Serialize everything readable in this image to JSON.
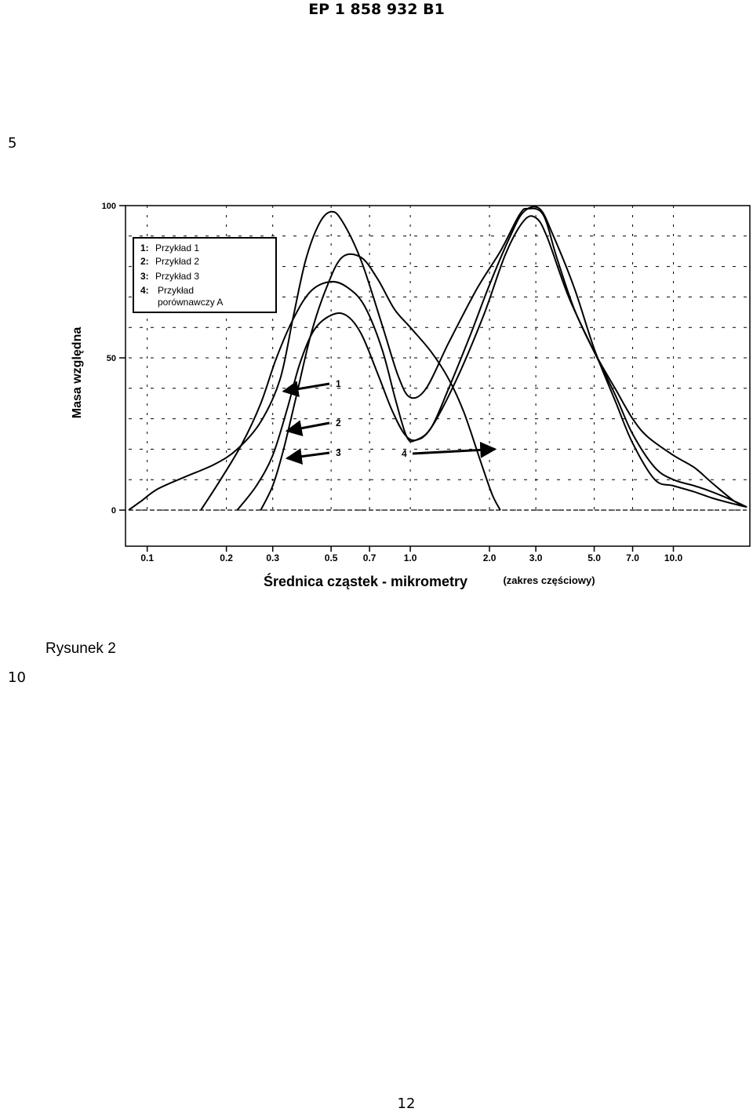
{
  "page": {
    "header": "EP 1 858 932 B1",
    "line_numbers": [
      "5",
      "10"
    ],
    "figure_caption": "Rysunek 2",
    "page_number": "12"
  },
  "chart_data": {
    "type": "line",
    "xlabel": "Średnica cząstek - mikrometry",
    "xlabel_note": "(zakres częściowy)",
    "ylabel": "Masa względna",
    "x_scale": "log",
    "xlim": [
      0.085,
      19
    ],
    "ylim": [
      0,
      100
    ],
    "x_ticks": [
      "0.1",
      "0.2",
      "0.3",
      "0.5",
      "0.7",
      "1.0",
      "2.0",
      "3.0",
      "5.0",
      "7.0",
      "10.0"
    ],
    "x_tick_values": [
      0.1,
      0.2,
      0.3,
      0.5,
      0.7,
      1.0,
      2.0,
      3.0,
      5.0,
      7.0,
      10.0
    ],
    "y_ticks": [
      "0",
      "50",
      "100"
    ],
    "y_tick_values": [
      0,
      50,
      100
    ],
    "grid": true,
    "legend": {
      "position": "top-left",
      "entries": [
        {
          "key": "1:",
          "label": "Przykład 1"
        },
        {
          "key": "2:",
          "label": "Przykład 2"
        },
        {
          "key": "3:",
          "label": "Przykład 3"
        },
        {
          "key": "4:",
          "label": "Przykład porównawczy A"
        }
      ]
    },
    "annotations": [
      {
        "text": "1",
        "series": "1",
        "arrow_to": [
          0.33,
          39
        ]
      },
      {
        "text": "2",
        "series": "2",
        "arrow_to": [
          0.34,
          26
        ]
      },
      {
        "text": "3",
        "series": "3",
        "arrow_to": [
          0.34,
          17
        ]
      },
      {
        "text": "4",
        "series": "4",
        "arrow_to": [
          2.1,
          20
        ]
      }
    ],
    "series": [
      {
        "name": "1",
        "points": [
          [
            0.085,
            0
          ],
          [
            0.095,
            3
          ],
          [
            0.11,
            7
          ],
          [
            0.14,
            11
          ],
          [
            0.18,
            15
          ],
          [
            0.22,
            20
          ],
          [
            0.27,
            29
          ],
          [
            0.32,
            43
          ],
          [
            0.36,
            64
          ],
          [
            0.4,
            82
          ],
          [
            0.45,
            94
          ],
          [
            0.5,
            98
          ],
          [
            0.55,
            95
          ],
          [
            0.65,
            82
          ],
          [
            0.78,
            61
          ],
          [
            0.9,
            44
          ],
          [
            1.0,
            37
          ],
          [
            1.15,
            40
          ],
          [
            1.4,
            55
          ],
          [
            1.8,
            73
          ],
          [
            2.2,
            85
          ],
          [
            2.6,
            97
          ],
          [
            2.8,
            99
          ],
          [
            3.2,
            97
          ],
          [
            3.6,
            83
          ],
          [
            4.2,
            66
          ],
          [
            5.0,
            52
          ],
          [
            6.0,
            40
          ],
          [
            7.0,
            30
          ],
          [
            8.0,
            24
          ],
          [
            10.0,
            18
          ],
          [
            12.0,
            14
          ],
          [
            14.0,
            9
          ],
          [
            17.0,
            3
          ],
          [
            19.0,
            1
          ]
        ]
      },
      {
        "name": "2",
        "points": [
          [
            0.16,
            0
          ],
          [
            0.19,
            10
          ],
          [
            0.23,
            22
          ],
          [
            0.27,
            35
          ],
          [
            0.31,
            50
          ],
          [
            0.36,
            63
          ],
          [
            0.42,
            72
          ],
          [
            0.5,
            75
          ],
          [
            0.58,
            73
          ],
          [
            0.67,
            67
          ],
          [
            0.78,
            53
          ],
          [
            0.88,
            36
          ],
          [
            0.97,
            24
          ],
          [
            1.05,
            23
          ],
          [
            1.2,
            27
          ],
          [
            1.4,
            40
          ],
          [
            1.7,
            58
          ],
          [
            2.0,
            74
          ],
          [
            2.4,
            90
          ],
          [
            2.7,
            98
          ],
          [
            3.1,
            99
          ],
          [
            3.5,
            90
          ],
          [
            4.2,
            73
          ],
          [
            5.0,
            53
          ],
          [
            6.0,
            36
          ],
          [
            7.0,
            22
          ],
          [
            8.5,
            10
          ],
          [
            10.0,
            8
          ],
          [
            12.0,
            6
          ],
          [
            14.0,
            4
          ],
          [
            17.0,
            2
          ],
          [
            19.0,
            1
          ]
        ]
      },
      {
        "name": "3",
        "points": [
          [
            0.22,
            0
          ],
          [
            0.26,
            8
          ],
          [
            0.3,
            18
          ],
          [
            0.34,
            33
          ],
          [
            0.38,
            48
          ],
          [
            0.43,
            59
          ],
          [
            0.5,
            64
          ],
          [
            0.57,
            64
          ],
          [
            0.65,
            58
          ],
          [
            0.75,
            45
          ],
          [
            0.85,
            33
          ],
          [
            0.95,
            25
          ],
          [
            1.05,
            23
          ],
          [
            1.2,
            27
          ],
          [
            1.5,
            43
          ],
          [
            1.9,
            64
          ],
          [
            2.3,
            84
          ],
          [
            2.7,
            95
          ],
          [
            3.0,
            96
          ],
          [
            3.3,
            90
          ],
          [
            4.0,
            70
          ],
          [
            5.0,
            52
          ],
          [
            6.0,
            38
          ],
          [
            7.0,
            25
          ],
          [
            8.5,
            14
          ],
          [
            10.0,
            10
          ],
          [
            12.0,
            8
          ],
          [
            14.0,
            6
          ],
          [
            17.0,
            3
          ],
          [
            19.0,
            1
          ]
        ]
      },
      {
        "name": "4",
        "points": [
          [
            0.27,
            0
          ],
          [
            0.3,
            8
          ],
          [
            0.33,
            20
          ],
          [
            0.37,
            38
          ],
          [
            0.42,
            58
          ],
          [
            0.48,
            73
          ],
          [
            0.55,
            83
          ],
          [
            0.65,
            83
          ],
          [
            0.75,
            76
          ],
          [
            0.87,
            66
          ],
          [
            1.0,
            60
          ],
          [
            1.2,
            52
          ],
          [
            1.4,
            43
          ],
          [
            1.6,
            32
          ],
          [
            1.85,
            16
          ],
          [
            2.05,
            5
          ],
          [
            2.2,
            0
          ]
        ]
      }
    ]
  }
}
